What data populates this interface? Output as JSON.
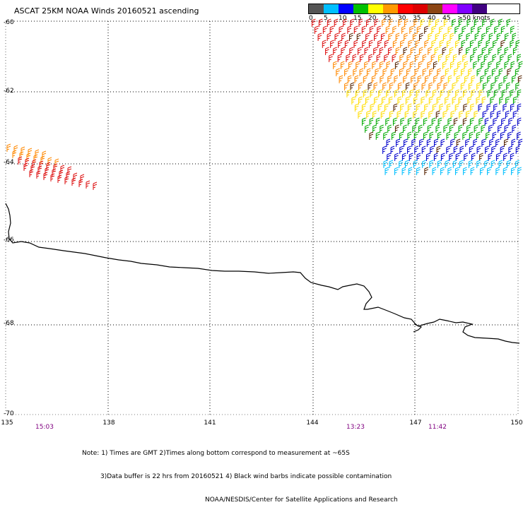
{
  "title": "ASCAT 25KM NOAA Winds 20160521 ascending",
  "legend": {
    "colors": [
      "#555555",
      "#00bfff",
      "#0000ff",
      "#00c000",
      "#ffff00",
      "#ff9900",
      "#ff0000",
      "#dd0000",
      "#8b4513",
      "#ff00ff",
      "#7f00ff",
      "#400080"
    ],
    "labels": [
      "0",
      "5",
      "10",
      "15",
      "20",
      "25",
      "30",
      "35",
      "40",
      "45",
      ">50 knots"
    ]
  },
  "axes": {
    "lat_labels": [
      "-60",
      "-62",
      "-64",
      "-66",
      "-68",
      "-70"
    ],
    "lon_labels": [
      "135",
      "138",
      "141",
      "144",
      "147",
      "150"
    ]
  },
  "times": [
    "15:03",
    "13:23",
    "11:42"
  ],
  "notes": {
    "line1": "Note: 1) Times are GMT 2)Times along bottom correspond to measurement at ~65S",
    "line2": "3)Data buffer is 22 hrs from 20160521 4) Black wind barbs indicate possible contamination",
    "line3": "NOAA/NESDIS/Center for Satellite Applications and Research"
  }
}
